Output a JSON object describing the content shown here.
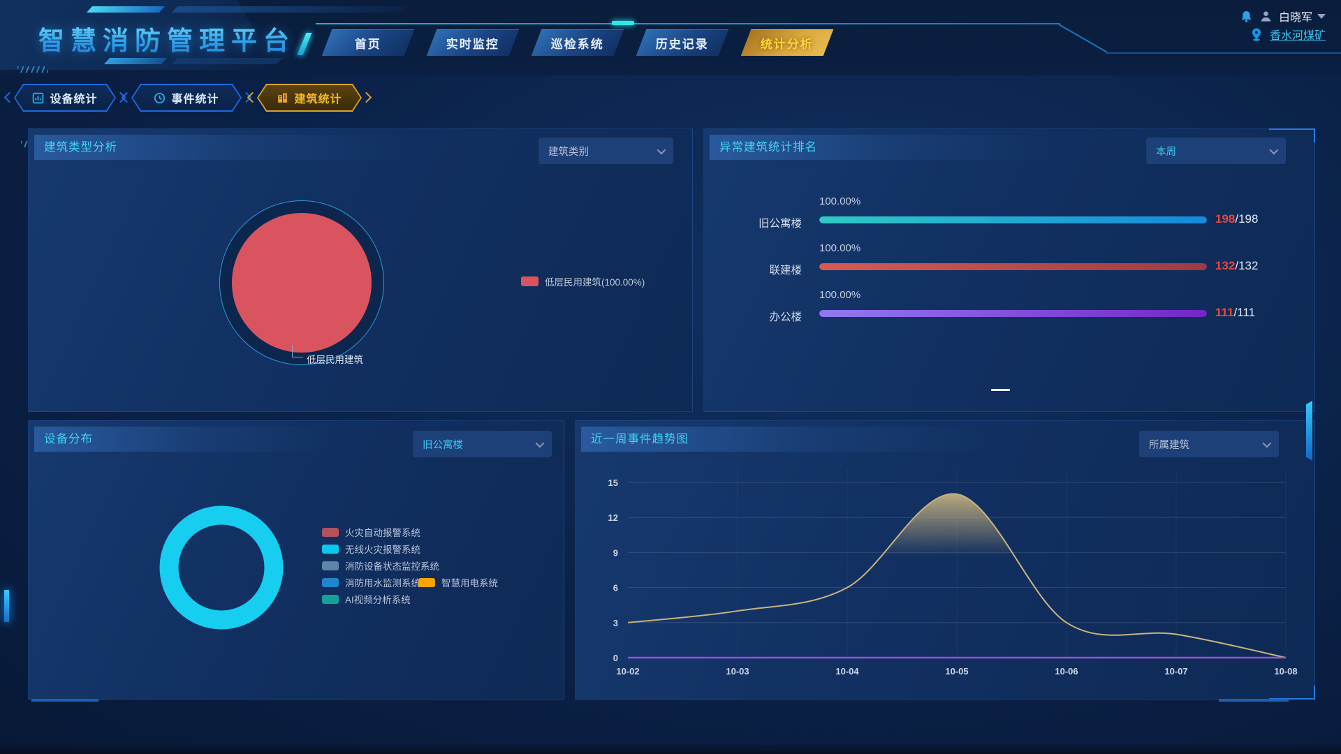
{
  "app": {
    "title": "智慧消防管理平台"
  },
  "header": {
    "nav": [
      {
        "label": "首页",
        "active": false
      },
      {
        "label": "实时监控",
        "active": false
      },
      {
        "label": "巡检系统",
        "active": false
      },
      {
        "label": "历史记录",
        "active": false
      },
      {
        "label": "统计分析",
        "active": true
      }
    ],
    "user": {
      "name": "白晓军",
      "org": "香水河煤矿"
    }
  },
  "subtabs": [
    {
      "label": "设备统计",
      "active": false
    },
    {
      "label": "事件统计",
      "active": false
    },
    {
      "label": "建筑统计",
      "active": true
    }
  ],
  "panels": {
    "building_type": {
      "title": "建筑类型分析",
      "dropdown": "建筑类别",
      "pie_label": "低层民用建筑",
      "legend": "低层民用建筑(100.00%)",
      "color": "#d9545e"
    },
    "ranking": {
      "title": "异常建筑统计排名",
      "dropdown": "本周",
      "value_color": "#e8483c",
      "rows": [
        {
          "label": "旧公寓楼",
          "percent": "100.00%",
          "value": "198",
          "total": "/198",
          "bar_colors": [
            "#30c9c5",
            "#1689dd"
          ]
        },
        {
          "label": "联建楼",
          "percent": "100.00%",
          "value": "132",
          "total": "/132",
          "bar_colors": [
            "#d75a52",
            "#9e3a44"
          ]
        },
        {
          "label": "办公楼",
          "percent": "100.00%",
          "value": "111",
          "total": "/111",
          "bar_colors": [
            "#9179f1",
            "#7327c6"
          ]
        }
      ]
    },
    "device": {
      "title": "设备分布",
      "dropdown": "旧公寓楼",
      "donut_color": "#17cdf0",
      "legend": [
        {
          "label": "火灾自动报警系统",
          "color": "#b2525e"
        },
        {
          "label": "无线火灾报警系统",
          "color": "#0ac8ec"
        },
        {
          "label": "消防设备状态监控系统",
          "color": "#5d85aa"
        },
        {
          "label": "消防用水监测系统",
          "color": "#1f85cd"
        },
        {
          "label": "智慧用电系统",
          "color": "#f5a400"
        },
        {
          "label": "AI视频分析系统",
          "color": "#12a29a"
        }
      ]
    },
    "trend": {
      "title": "近一周事件趋势图",
      "dropdown": "所属建筑",
      "line_color": "#c9b47e",
      "axis_color": "#9b4fd6"
    }
  },
  "chart_data": [
    {
      "type": "pie",
      "title": "建筑类型分析",
      "series": [
        {
          "name": "低层民用建筑",
          "value": 100.0
        }
      ],
      "unit": "percent",
      "colors": [
        "#d9545e"
      ],
      "legend_position": "right"
    },
    {
      "type": "bar",
      "title": "异常建筑统计排名",
      "orientation": "horizontal",
      "categories": [
        "旧公寓楼",
        "联建楼",
        "办公楼"
      ],
      "values": [
        100.0,
        100.0,
        100.0
      ],
      "counts": [
        "198/198",
        "132/132",
        "111/111"
      ],
      "xlim": [
        0,
        100
      ]
    },
    {
      "type": "pie",
      "subtype": "donut",
      "title": "设备分布",
      "series": [
        {
          "name": "无线火灾报警系统",
          "value": 100
        }
      ],
      "colors": [
        "#17cdf0"
      ],
      "legend": [
        "火灾自动报警系统",
        "无线火灾报警系统",
        "消防设备状态监控系统",
        "消防用水监测系统",
        "智慧用电系统",
        "AI视频分析系统"
      ]
    },
    {
      "type": "line",
      "title": "近一周事件趋势图",
      "x": [
        "10-02",
        "10-03",
        "10-04",
        "10-05",
        "10-06",
        "10-07",
        "10-08"
      ],
      "values": [
        3,
        4,
        6,
        14,
        3,
        2,
        0
      ],
      "ylim": [
        0,
        15
      ],
      "yticks": [
        0,
        3,
        6,
        9,
        12,
        15
      ],
      "smooth": true,
      "area": true,
      "grid": true
    }
  ]
}
